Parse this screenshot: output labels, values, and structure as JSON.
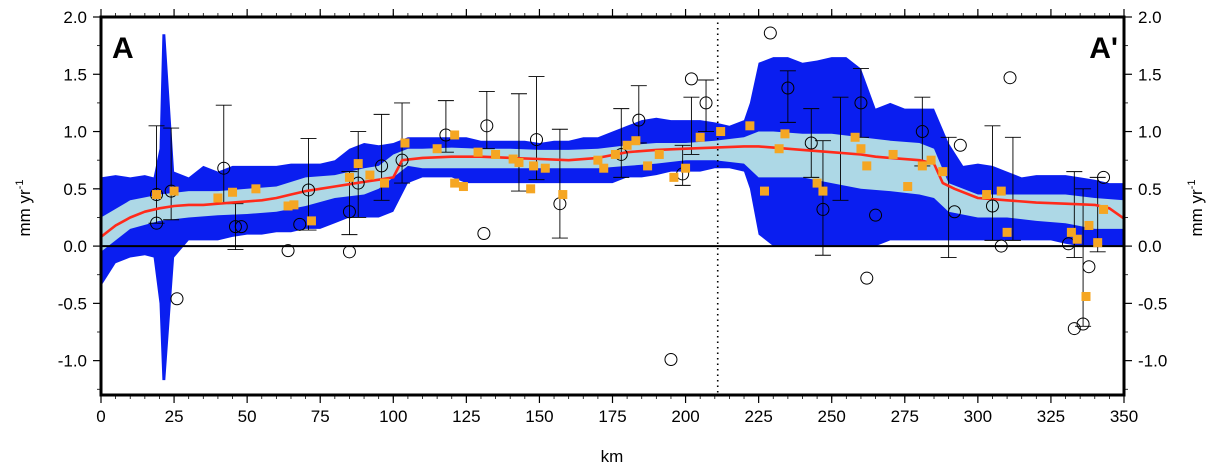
{
  "chart_data": {
    "type": "scatter",
    "xlabel": "km",
    "ylabel": "mm yr",
    "ylabel_superscript": "-1",
    "xlim": [
      0,
      350
    ],
    "ylim": [
      -1.3,
      2.0
    ],
    "x_ticks": [
      0,
      25,
      50,
      75,
      100,
      125,
      150,
      175,
      200,
      225,
      250,
      275,
      300,
      325,
      350
    ],
    "y_ticks": [
      -1.0,
      -0.5,
      0.0,
      0.5,
      1.0,
      1.5,
      2.0
    ],
    "y_tick_labels": [
      "-1.0",
      "-0.5",
      "0.0",
      "0.5",
      "1.0",
      "1.5",
      "2.0"
    ],
    "corner_labels": {
      "left": "A",
      "right": "A'"
    },
    "reference_lines": {
      "zero_line_y": 0.0,
      "dotted_vertical_x": 211
    },
    "colors": {
      "outer_band": "#0a1ef0",
      "inner_band": "#add8e6",
      "median_line": "#ff2a1a",
      "squares": "#f5a623",
      "circles": "#000000",
      "error_bars": "#000000"
    },
    "series": [
      {
        "kind": "outer_band",
        "x": [
          0,
          5,
          10,
          15,
          18,
          20,
          21,
          22,
          25,
          30,
          35,
          40,
          45,
          50,
          55,
          60,
          65,
          70,
          75,
          80,
          85,
          90,
          95,
          100,
          105,
          110,
          115,
          120,
          125,
          130,
          135,
          140,
          145,
          150,
          155,
          160,
          165,
          170,
          175,
          180,
          185,
          190,
          195,
          200,
          205,
          210,
          215,
          220,
          222,
          225,
          230,
          235,
          240,
          245,
          250,
          255,
          260,
          265,
          270,
          275,
          280,
          285,
          290,
          295,
          300,
          305,
          310,
          315,
          320,
          325,
          330,
          335,
          340,
          345,
          350
        ],
        "upper": [
          0.6,
          0.62,
          0.6,
          0.62,
          0.6,
          0.85,
          1.85,
          1.85,
          0.65,
          0.6,
          0.7,
          0.65,
          0.7,
          0.7,
          0.7,
          0.7,
          0.72,
          0.72,
          0.72,
          0.75,
          0.85,
          0.9,
          0.88,
          0.9,
          0.95,
          0.95,
          0.95,
          0.95,
          0.95,
          0.92,
          0.92,
          0.92,
          0.92,
          0.9,
          0.92,
          0.92,
          0.95,
          0.95,
          1.0,
          1.05,
          1.1,
          1.12,
          1.1,
          1.1,
          1.1,
          1.08,
          1.05,
          1.1,
          1.25,
          1.6,
          1.65,
          1.65,
          1.6,
          1.62,
          1.65,
          1.65,
          1.55,
          1.2,
          1.25,
          1.2,
          1.2,
          1.2,
          0.9,
          0.7,
          0.72,
          0.7,
          0.65,
          0.6,
          0.62,
          0.62,
          0.62,
          0.6,
          0.58,
          0.55,
          0.55
        ],
        "lower": [
          -0.35,
          -0.15,
          -0.1,
          -0.08,
          -0.1,
          -0.5,
          -1.17,
          -1.17,
          -0.1,
          0.05,
          0.05,
          0.05,
          0.08,
          0.1,
          0.1,
          0.12,
          0.12,
          0.15,
          0.15,
          0.2,
          0.25,
          0.25,
          0.25,
          0.3,
          0.55,
          0.6,
          0.6,
          0.6,
          0.55,
          0.55,
          0.55,
          0.55,
          0.55,
          0.55,
          0.55,
          0.55,
          0.55,
          0.55,
          0.55,
          0.6,
          0.6,
          0.62,
          0.65,
          0.65,
          0.65,
          0.68,
          0.68,
          0.65,
          0.5,
          0.1,
          0.0,
          0.0,
          0.0,
          0.0,
          0.0,
          0.0,
          0.0,
          0.0,
          0.05,
          0.05,
          0.05,
          0.05,
          0.05,
          0.05,
          0.05,
          0.05,
          0.05,
          0.05,
          0.05,
          0.05,
          0.02,
          0.0,
          0.0,
          0.0,
          0.0
        ]
      },
      {
        "kind": "inner_band",
        "x": [
          0,
          10,
          20,
          30,
          40,
          50,
          60,
          70,
          80,
          90,
          95,
          100,
          105,
          110,
          120,
          130,
          140,
          150,
          160,
          170,
          180,
          190,
          200,
          210,
          220,
          225,
          230,
          240,
          250,
          260,
          270,
          280,
          285,
          290,
          300,
          310,
          320,
          330,
          340,
          350
        ],
        "upper": [
          0.25,
          0.4,
          0.45,
          0.48,
          0.48,
          0.5,
          0.52,
          0.6,
          0.62,
          0.68,
          0.7,
          0.8,
          0.85,
          0.85,
          0.86,
          0.85,
          0.85,
          0.84,
          0.84,
          0.85,
          0.88,
          0.9,
          0.9,
          0.92,
          0.95,
          1.0,
          1.0,
          0.98,
          0.98,
          0.95,
          0.92,
          0.9,
          0.85,
          0.55,
          0.45,
          0.45,
          0.45,
          0.45,
          0.42,
          0.4
        ],
        "lower": [
          -0.05,
          0.15,
          0.22,
          0.25,
          0.27,
          0.28,
          0.3,
          0.35,
          0.42,
          0.45,
          0.5,
          0.6,
          0.7,
          0.68,
          0.68,
          0.68,
          0.68,
          0.68,
          0.68,
          0.68,
          0.7,
          0.72,
          0.75,
          0.75,
          0.72,
          0.6,
          0.6,
          0.6,
          0.55,
          0.5,
          0.48,
          0.45,
          0.42,
          0.3,
          0.25,
          0.25,
          0.22,
          0.2,
          0.15,
          0.15
        ]
      },
      {
        "kind": "median_line",
        "x": [
          0,
          5,
          10,
          15,
          20,
          25,
          30,
          35,
          40,
          45,
          50,
          55,
          60,
          65,
          70,
          75,
          80,
          85,
          90,
          95,
          100,
          103,
          110,
          120,
          130,
          140,
          150,
          160,
          170,
          180,
          190,
          200,
          210,
          220,
          225,
          230,
          240,
          250,
          260,
          265,
          270,
          280,
          285,
          288,
          292,
          300,
          310,
          320,
          330,
          340,
          345,
          350
        ],
        "y": [
          0.08,
          0.18,
          0.25,
          0.3,
          0.33,
          0.35,
          0.36,
          0.36,
          0.37,
          0.38,
          0.39,
          0.4,
          0.42,
          0.45,
          0.48,
          0.5,
          0.52,
          0.54,
          0.56,
          0.58,
          0.6,
          0.75,
          0.77,
          0.78,
          0.78,
          0.77,
          0.76,
          0.75,
          0.77,
          0.82,
          0.84,
          0.85,
          0.86,
          0.87,
          0.87,
          0.86,
          0.84,
          0.82,
          0.8,
          0.78,
          0.77,
          0.75,
          0.72,
          0.55,
          0.5,
          0.42,
          0.4,
          0.38,
          0.37,
          0.36,
          0.33,
          0.24
        ]
      },
      {
        "kind": "squares",
        "points": [
          [
            19,
            0.45
          ],
          [
            25,
            0.48
          ],
          [
            40,
            0.42
          ],
          [
            45,
            0.47
          ],
          [
            53,
            0.5
          ],
          [
            64,
            0.35
          ],
          [
            66,
            0.36
          ],
          [
            72,
            0.22
          ],
          [
            85,
            0.6
          ],
          [
            88,
            0.72
          ],
          [
            92,
            0.62
          ],
          [
            97,
            0.55
          ],
          [
            104,
            0.9
          ],
          [
            115,
            0.85
          ],
          [
            121,
            0.97
          ],
          [
            121,
            0.55
          ],
          [
            124,
            0.52
          ],
          [
            129,
            0.82
          ],
          [
            135,
            0.8
          ],
          [
            141,
            0.76
          ],
          [
            143,
            0.73
          ],
          [
            147,
            0.5
          ],
          [
            148,
            0.7
          ],
          [
            152,
            0.68
          ],
          [
            158,
            0.45
          ],
          [
            170,
            0.75
          ],
          [
            172,
            0.68
          ],
          [
            176,
            0.8
          ],
          [
            180,
            0.88
          ],
          [
            183,
            0.92
          ],
          [
            187,
            0.7
          ],
          [
            191,
            0.8
          ],
          [
            196,
            0.6
          ],
          [
            200,
            0.68
          ],
          [
            205,
            0.95
          ],
          [
            212,
            1.0
          ],
          [
            222,
            1.05
          ],
          [
            227,
            0.48
          ],
          [
            232,
            0.85
          ],
          [
            234,
            0.98
          ],
          [
            245,
            0.55
          ],
          [
            247,
            0.48
          ],
          [
            258,
            0.95
          ],
          [
            260,
            0.85
          ],
          [
            262,
            0.7
          ],
          [
            271,
            0.8
          ],
          [
            276,
            0.52
          ],
          [
            281,
            0.7
          ],
          [
            284,
            0.75
          ],
          [
            288,
            0.65
          ],
          [
            303,
            0.45
          ],
          [
            308,
            0.48
          ],
          [
            310,
            0.12
          ],
          [
            332,
            0.12
          ],
          [
            334,
            0.06
          ],
          [
            337,
            -0.44
          ],
          [
            338,
            0.18
          ],
          [
            341,
            0.03
          ],
          [
            343,
            0.32
          ]
        ]
      },
      {
        "kind": "circles",
        "points": [
          [
            19,
            0.45
          ],
          [
            19,
            0.2
          ],
          [
            24,
            0.48
          ],
          [
            26,
            -0.46
          ],
          [
            42,
            0.68
          ],
          [
            46,
            0.17
          ],
          [
            48,
            0.17
          ],
          [
            64,
            -0.04
          ],
          [
            68,
            0.19
          ],
          [
            71,
            0.49
          ],
          [
            85,
            -0.05
          ],
          [
            85,
            0.3
          ],
          [
            88,
            0.55
          ],
          [
            96,
            0.7
          ],
          [
            103,
            0.75
          ],
          [
            118,
            0.97
          ],
          [
            131,
            0.11
          ],
          [
            132,
            1.05
          ],
          [
            149,
            0.93
          ],
          [
            157,
            0.37
          ],
          [
            178,
            0.8
          ],
          [
            184,
            1.1
          ],
          [
            195,
            -0.99
          ],
          [
            199,
            0.63
          ],
          [
            202,
            1.46
          ],
          [
            207,
            1.25
          ],
          [
            229,
            1.86
          ],
          [
            235,
            1.38
          ],
          [
            243,
            0.9
          ],
          [
            247,
            0.32
          ],
          [
            260,
            1.25
          ],
          [
            262,
            -0.28
          ],
          [
            265,
            0.27
          ],
          [
            281,
            1.0
          ],
          [
            292,
            0.3
          ],
          [
            294,
            0.88
          ],
          [
            305,
            0.35
          ],
          [
            308,
            0.0
          ],
          [
            311,
            1.47
          ],
          [
            331,
            0.02
          ],
          [
            333,
            -0.72
          ],
          [
            336,
            -0.68
          ],
          [
            338,
            -0.18
          ],
          [
            343,
            0.6
          ]
        ]
      },
      {
        "kind": "error_bars",
        "points": [
          [
            19,
            0.45,
            0.25,
            0.6
          ],
          [
            24,
            0.48,
            0.25,
            0.55
          ],
          [
            42,
            0.68,
            0.3,
            0.55
          ],
          [
            46,
            0.17,
            0.2,
            0.2
          ],
          [
            71,
            0.49,
            0.35,
            0.45
          ],
          [
            85,
            0.3,
            0.2,
            0.35
          ],
          [
            88,
            0.55,
            0.3,
            0.45
          ],
          [
            96,
            0.7,
            0.3,
            0.45
          ],
          [
            103,
            0.75,
            0.2,
            0.5
          ],
          [
            118,
            0.97,
            0.15,
            0.3
          ],
          [
            132,
            1.05,
            0.2,
            0.3
          ],
          [
            143,
            0.78,
            0.3,
            0.55
          ],
          [
            149,
            0.93,
            0.35,
            0.55
          ],
          [
            157,
            0.37,
            0.3,
            0.65
          ],
          [
            178,
            0.8,
            0.2,
            0.4
          ],
          [
            184,
            1.1,
            0.2,
            0.3
          ],
          [
            199,
            0.63,
            0.1,
            0.25
          ],
          [
            202,
            1.0,
            0.2,
            0.3
          ],
          [
            207,
            1.25,
            0.25,
            0.2
          ],
          [
            235,
            1.38,
            0.3,
            0.15
          ],
          [
            243,
            0.9,
            0.3,
            0.3
          ],
          [
            247,
            0.32,
            0.4,
            0.6
          ],
          [
            253,
            0.7,
            0.3,
            0.6
          ],
          [
            260,
            1.25,
            0.3,
            0.3
          ],
          [
            281,
            1.0,
            0.3,
            0.3
          ],
          [
            290,
            0.3,
            0.4,
            0.65
          ],
          [
            305,
            0.35,
            0.3,
            0.7
          ],
          [
            312,
            0.45,
            0.4,
            0.5
          ],
          [
            333,
            0.3,
            0.4,
            0.35
          ],
          [
            336,
            -0.1,
            0.6,
            0.6
          ],
          [
            341,
            0.3,
            0.35,
            0.3
          ]
        ]
      }
    ]
  }
}
